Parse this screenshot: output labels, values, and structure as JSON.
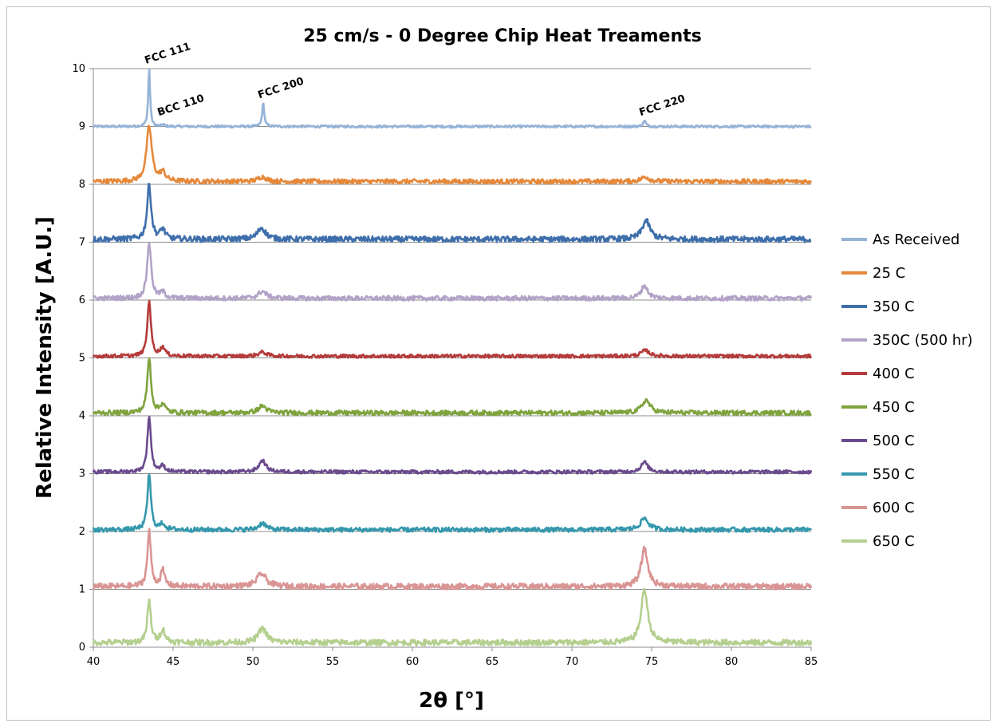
{
  "chart_data": {
    "type": "line",
    "title": "25 cm/s - 0 Degree Chip Heat Treaments",
    "xlabel": "2θ [°]",
    "ylabel": "Relative Intensity [A.U.]",
    "xlim": [
      40,
      85
    ],
    "ylim": [
      0,
      10
    ],
    "x_ticks": [
      "40",
      "45",
      "50",
      "55",
      "60",
      "65",
      "70",
      "75",
      "80",
      "85"
    ],
    "y_ticks": [
      "0",
      "1",
      "2",
      "3",
      "4",
      "5",
      "6",
      "7",
      "8",
      "9",
      "10"
    ],
    "grid": "horizontal",
    "legend_position": "right",
    "annotations": [
      {
        "text": "FCC 111",
        "x": 43.5,
        "y": 10.0
      },
      {
        "text": "BCC 110",
        "x": 44.3,
        "y": 9.1
      },
      {
        "text": "FCC 200",
        "x": 50.6,
        "y": 9.4
      },
      {
        "text": "FCC 220",
        "x": 74.5,
        "y": 9.1
      }
    ],
    "series": [
      {
        "name": "As Received",
        "color": "#95b3d7",
        "baseline": 9.0,
        "noise": 0.02,
        "peaks": [
          {
            "x": 43.5,
            "h": 1.0,
            "w": 0.07
          },
          {
            "x": 44.4,
            "h": 0.03,
            "w": 0.1
          },
          {
            "x": 50.65,
            "h": 0.4,
            "w": 0.08
          },
          {
            "x": 74.55,
            "h": 0.1,
            "w": 0.1
          }
        ]
      },
      {
        "name": "25 C",
        "color": "#e6883a",
        "baseline": 8.05,
        "noise": 0.04,
        "peaks": [
          {
            "x": 43.5,
            "h": 0.95,
            "w": 0.2
          },
          {
            "x": 44.35,
            "h": 0.15,
            "w": 0.2
          },
          {
            "x": 50.6,
            "h": 0.08,
            "w": 0.3
          },
          {
            "x": 74.6,
            "h": 0.08,
            "w": 0.3
          }
        ]
      },
      {
        "name": "350 C",
        "color": "#3f6fab",
        "baseline": 7.05,
        "noise": 0.05,
        "peaks": [
          {
            "x": 43.5,
            "h": 0.95,
            "w": 0.15
          },
          {
            "x": 44.35,
            "h": 0.17,
            "w": 0.18
          },
          {
            "x": 50.55,
            "h": 0.2,
            "w": 0.3
          },
          {
            "x": 74.65,
            "h": 0.32,
            "w": 0.3
          }
        ]
      },
      {
        "name": "350C (500 hr)",
        "color": "#b3a2c7",
        "baseline": 6.03,
        "noise": 0.04,
        "peaks": [
          {
            "x": 43.5,
            "h": 0.97,
            "w": 0.15
          },
          {
            "x": 44.35,
            "h": 0.1,
            "w": 0.18
          },
          {
            "x": 50.6,
            "h": 0.12,
            "w": 0.3
          },
          {
            "x": 74.55,
            "h": 0.22,
            "w": 0.25
          }
        ]
      },
      {
        "name": "400 C",
        "color": "#b53a3a",
        "baseline": 5.03,
        "noise": 0.03,
        "peaks": [
          {
            "x": 43.5,
            "h": 0.97,
            "w": 0.13
          },
          {
            "x": 44.35,
            "h": 0.15,
            "w": 0.18
          },
          {
            "x": 50.6,
            "h": 0.07,
            "w": 0.3
          },
          {
            "x": 74.6,
            "h": 0.1,
            "w": 0.3
          }
        ]
      },
      {
        "name": "450 C",
        "color": "#7fa33d",
        "baseline": 4.05,
        "noise": 0.04,
        "peaks": [
          {
            "x": 43.5,
            "h": 0.95,
            "w": 0.14
          },
          {
            "x": 44.35,
            "h": 0.15,
            "w": 0.18
          },
          {
            "x": 50.6,
            "h": 0.12,
            "w": 0.3
          },
          {
            "x": 74.65,
            "h": 0.22,
            "w": 0.3
          }
        ]
      },
      {
        "name": "500 C",
        "color": "#6a4b8e",
        "baseline": 3.03,
        "noise": 0.03,
        "peaks": [
          {
            "x": 43.5,
            "h": 0.97,
            "w": 0.13
          },
          {
            "x": 44.35,
            "h": 0.1,
            "w": 0.18
          },
          {
            "x": 50.6,
            "h": 0.2,
            "w": 0.25
          },
          {
            "x": 74.55,
            "h": 0.17,
            "w": 0.25
          }
        ]
      },
      {
        "name": "550 C",
        "color": "#3498ad",
        "baseline": 2.03,
        "noise": 0.04,
        "peaks": [
          {
            "x": 43.5,
            "h": 0.97,
            "w": 0.13
          },
          {
            "x": 44.35,
            "h": 0.1,
            "w": 0.18
          },
          {
            "x": 50.6,
            "h": 0.12,
            "w": 0.25
          },
          {
            "x": 74.55,
            "h": 0.2,
            "w": 0.3
          }
        ]
      },
      {
        "name": "600 C",
        "color": "#d99594",
        "baseline": 1.05,
        "noise": 0.05,
        "peaks": [
          {
            "x": 43.5,
            "h": 0.95,
            "w": 0.13
          },
          {
            "x": 44.35,
            "h": 0.27,
            "w": 0.15
          },
          {
            "x": 50.55,
            "h": 0.22,
            "w": 0.35
          },
          {
            "x": 74.55,
            "h": 0.65,
            "w": 0.25
          }
        ]
      },
      {
        "name": "650 C",
        "color": "#b4cf8e",
        "baseline": 0.08,
        "noise": 0.05,
        "peaks": [
          {
            "x": 43.5,
            "h": 0.72,
            "w": 0.13
          },
          {
            "x": 44.35,
            "h": 0.22,
            "w": 0.18
          },
          {
            "x": 50.6,
            "h": 0.25,
            "w": 0.3
          },
          {
            "x": 74.55,
            "h": 0.92,
            "w": 0.25
          }
        ]
      }
    ]
  }
}
